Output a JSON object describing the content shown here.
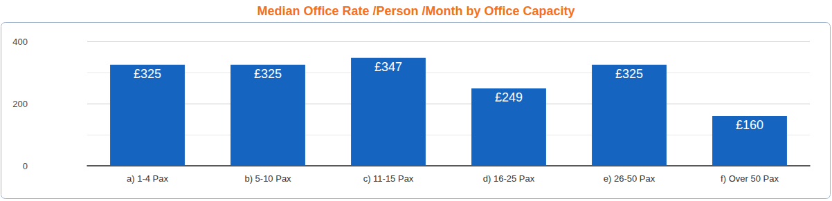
{
  "chart_data": {
    "type": "bar",
    "title": "Median Office Rate /Person /Month by Office Capacity",
    "categories": [
      "a) 1-4 Pax",
      "b) 5-10 Pax",
      "c) 11-15 Pax",
      "d) 16-25 Pax",
      "e) 26-50 Pax",
      "f) Over 50 Pax"
    ],
    "values": [
      325,
      325,
      347,
      249,
      325,
      160
    ],
    "value_labels": [
      "£325",
      "£325",
      "£347",
      "£249",
      "£325",
      "£160"
    ],
    "color": "#1565c0",
    "ylim": [
      0,
      400
    ],
    "yticks": [
      0,
      200,
      400
    ],
    "grid": true,
    "data_labels": true
  }
}
